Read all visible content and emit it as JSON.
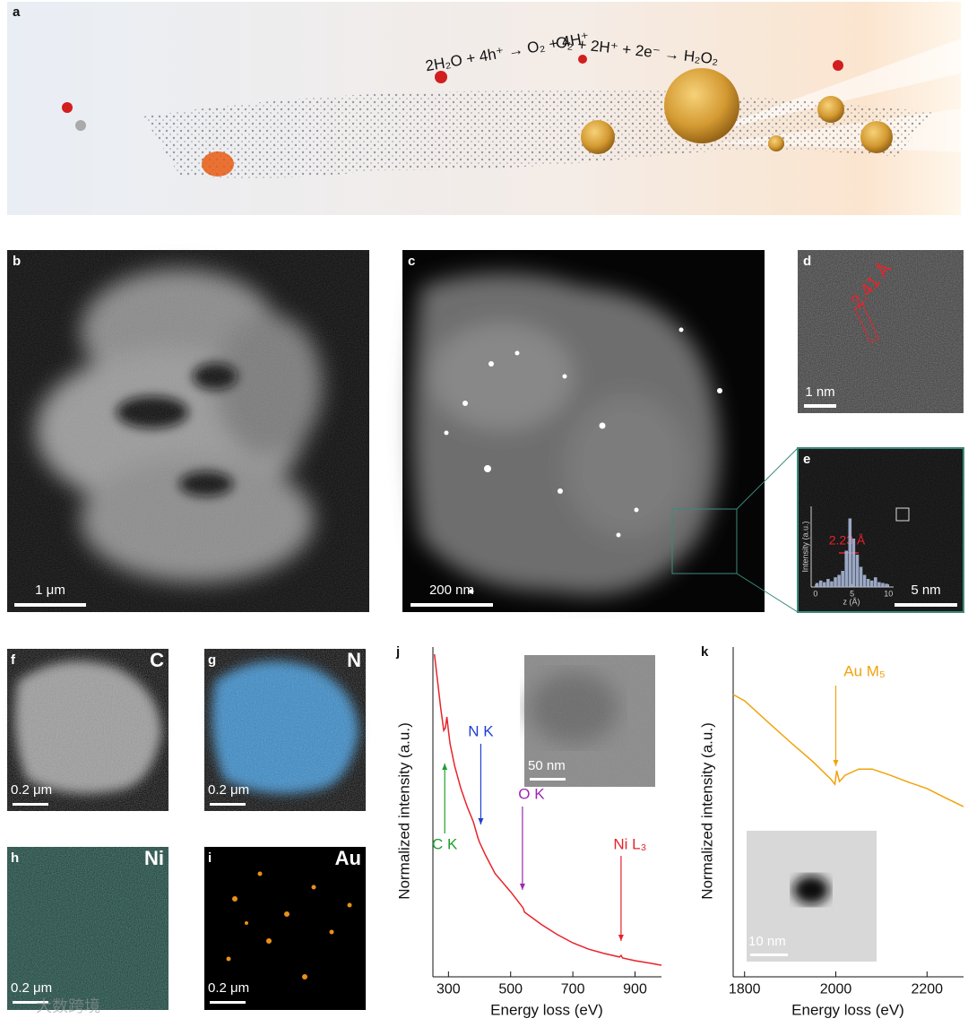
{
  "panel_a": {
    "label": "a",
    "equation_1": "2H₂O + 4h⁺ → O₂ + 4H⁺",
    "equation_2": "O₂ + 2H⁺ + 2e⁻ → H₂O₂"
  },
  "panel_b": {
    "label": "b",
    "scale_bar": "1 μm"
  },
  "panel_c": {
    "label": "c",
    "scale_bar": "200 nm"
  },
  "panel_d": {
    "label": "d",
    "lattice_spacing": "2.41 Å",
    "scale_bar": "1 nm"
  },
  "panel_e": {
    "label": "e",
    "scale_bar": "5 nm",
    "peak_width": "2.23 Å"
  },
  "panel_f": {
    "label": "f",
    "element": "C",
    "scale_bar": "0.2 μm"
  },
  "panel_g": {
    "label": "g",
    "element": "N",
    "scale_bar": "0.2 μm"
  },
  "panel_h": {
    "label": "h",
    "element": "Ni",
    "scale_bar": "0.2 μm"
  },
  "panel_i": {
    "label": "i",
    "element": "Au",
    "scale_bar": "0.2 μm"
  },
  "panel_j": {
    "label": "j",
    "inset_scale_bar": "50 nm"
  },
  "panel_k": {
    "label": "k",
    "inset_scale_bar": "10 nm"
  },
  "watermark": "大数跨境",
  "chart_data": [
    {
      "type": "histogram",
      "x_label": "z (Å)",
      "y_label": "Intensity (a.u.)",
      "bins": [
        0,
        0.5,
        1,
        1.5,
        2,
        2.5,
        3,
        3.5,
        4,
        4.5,
        5,
        5.5,
        6,
        6.5,
        7,
        7.5,
        8,
        8.5,
        9,
        9.5,
        10
      ],
      "counts": [
        0.05,
        0.08,
        0.06,
        0.1,
        0.07,
        0.12,
        0.15,
        0.2,
        0.45,
        0.85,
        0.6,
        0.4,
        0.25,
        0.15,
        0.1,
        0.08,
        0.12,
        0.06,
        0.05,
        0.04
      ],
      "color": "#a8b8d8",
      "xlim": [
        -0.6,
        10.7
      ],
      "xticks": [
        0,
        5,
        10
      ],
      "ylim": [
        0,
        1
      ]
    },
    {
      "type": "line",
      "x_label": "Energy loss (eV)",
      "y_label": "Normalized intensity (a.u.)",
      "x": [
        255,
        265,
        275,
        285,
        290,
        295,
        300,
        305,
        320,
        340,
        360,
        380,
        395,
        400,
        420,
        450,
        500,
        540,
        545,
        600,
        650,
        700,
        750,
        800,
        850,
        855,
        860,
        900,
        950,
        985
      ],
      "values": [
        0.978,
        0.897,
        0.815,
        0.747,
        0.755,
        0.788,
        0.747,
        0.707,
        0.639,
        0.571,
        0.516,
        0.47,
        0.421,
        0.408,
        0.367,
        0.313,
        0.258,
        0.209,
        0.196,
        0.158,
        0.128,
        0.103,
        0.084,
        0.071,
        0.06,
        0.065,
        0.057,
        0.049,
        0.041,
        0.035
      ],
      "color": "#e8232a",
      "xlim": [
        250,
        985
      ],
      "xticks": [
        300,
        500,
        700,
        900
      ],
      "ylim": [
        0,
        1
      ],
      "annotations": [
        {
          "text": "C K",
          "x": 288,
          "color": "#1e9e2e"
        },
        {
          "text": "N K",
          "x": 404,
          "color": "#1f3fd0"
        },
        {
          "text": "O K",
          "x": 538,
          "color": "#9a2bb0"
        },
        {
          "text": "Ni L₃",
          "x": 855,
          "color": "#e8232a"
        }
      ]
    },
    {
      "type": "line",
      "x_label": "Energy loss (eV)",
      "y_label": "Normalized intensity (a.u.)",
      "x": [
        1775,
        1800,
        1850,
        1900,
        1950,
        1990,
        1998,
        2002,
        2008,
        2020,
        2050,
        2080,
        2120,
        2160,
        2200,
        2240,
        2280
      ],
      "values": [
        0.856,
        0.837,
        0.774,
        0.712,
        0.652,
        0.598,
        0.584,
        0.625,
        0.592,
        0.611,
        0.63,
        0.63,
        0.611,
        0.59,
        0.571,
        0.543,
        0.516
      ],
      "color": "#f0a30a",
      "xlim": [
        1775,
        2280
      ],
      "xticks": [
        1800,
        2000,
        2200
      ],
      "ylim": [
        0,
        1
      ],
      "annotations": [
        {
          "text": "Au M₅",
          "x": 2000,
          "color": "#f0a30a"
        }
      ]
    }
  ]
}
